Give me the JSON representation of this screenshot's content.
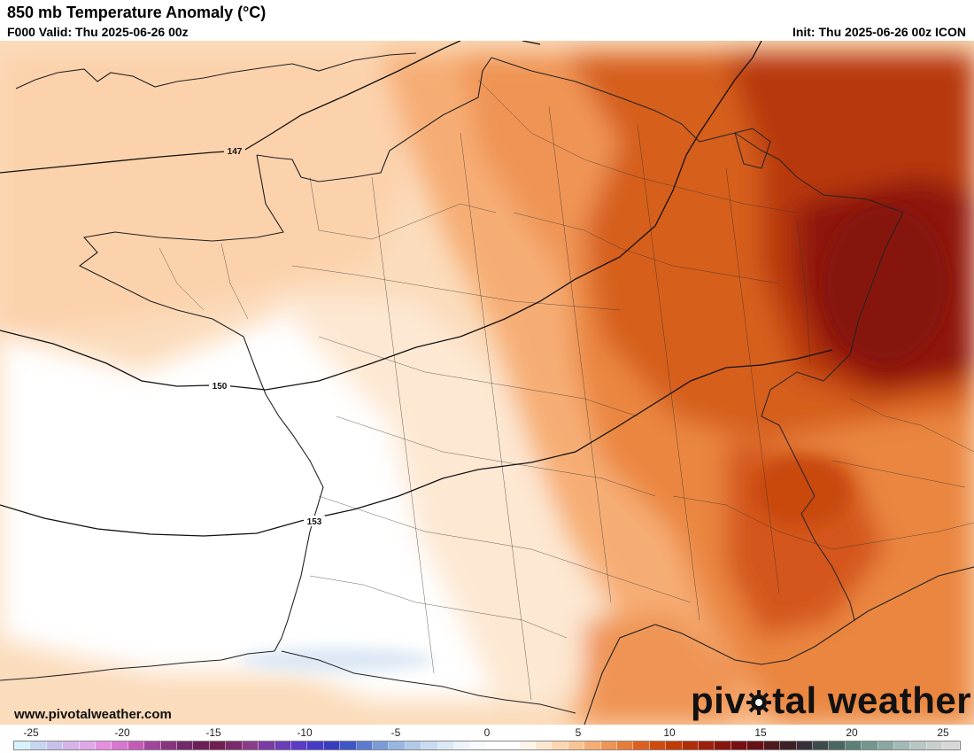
{
  "header": {
    "title": "850 mb Temperature Anomaly (°C)",
    "valid": "F000 Valid: Thu 2025-06-26 00z",
    "init": "Init: Thu 2025-06-26 00z ICON"
  },
  "map": {
    "region": "France",
    "contours": [
      {
        "label": "147"
      },
      {
        "label": "150"
      },
      {
        "label": "153"
      }
    ]
  },
  "footer": {
    "website": "www.pivotalweather.com",
    "logo_pre": "piv",
    "logo_post": "tal weather"
  },
  "colorbar": {
    "ticks": [
      "-25",
      "-20",
      "-15",
      "-10",
      "-5",
      "0",
      "5",
      "10",
      "15",
      "20",
      "25"
    ],
    "colors": [
      "#d6f2fb",
      "#c6d6f2",
      "#c8c0ec",
      "#d6b4ea",
      "#e0a8e8",
      "#e48fe0",
      "#d877cf",
      "#c45bb8",
      "#a1449a",
      "#88357f",
      "#722a6a",
      "#6b1f58",
      "#731e52",
      "#7a2a6a",
      "#8a3c88",
      "#7a3ca4",
      "#6a3cb8",
      "#5a3ac6",
      "#483ac8",
      "#3a3cc0",
      "#3f56c7",
      "#5c7bd0",
      "#7b9cd8",
      "#98b6e0",
      "#b2cae8",
      "#c9dbf0",
      "#dde8f5",
      "#eef3fa",
      "#f8fbfd",
      "#ffffff",
      "#ffffff",
      "#fef4ea",
      "#fde6cf",
      "#fcd6b0",
      "#f9c393",
      "#f5ad73",
      "#ef9555",
      "#e77c3a",
      "#dc6121",
      "#cf4a0c",
      "#c03a05",
      "#ae2c06",
      "#9c1f0a",
      "#8a140e",
      "#781012",
      "#661016",
      "#4e1a20",
      "#3d1f28",
      "#35303a",
      "#3f4a4c",
      "#4a6662",
      "#5a8078",
      "#73968f",
      "#8aa8a3",
      "#a2b9b6",
      "#b8c6c4",
      "#c9cfcd",
      "#d7d7d7"
    ]
  }
}
